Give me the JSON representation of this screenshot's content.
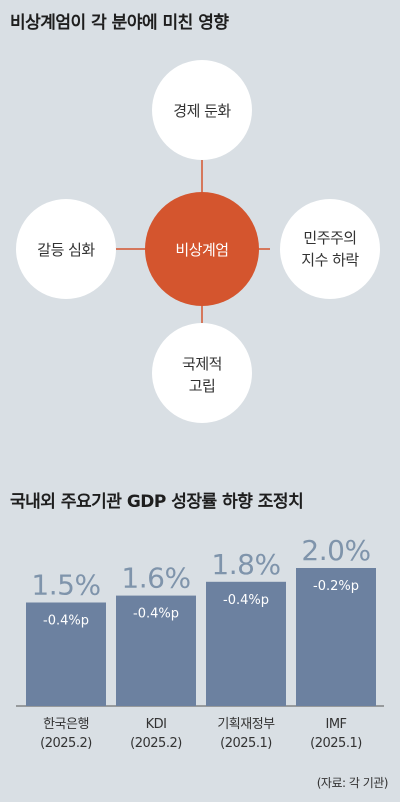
{
  "diagram": {
    "title": "비상계엄이 각 분야에 미친 영향",
    "center": "비상계엄",
    "nodes": {
      "top": [
        "경제 둔화"
      ],
      "right": [
        "민주주의",
        "지수 하락"
      ],
      "bottom": [
        "국제적",
        "고립"
      ],
      "left": [
        "갈등 심화"
      ]
    },
    "colors": {
      "center": "#d4552e",
      "node": "#ffffff",
      "connector": "#d4552e"
    }
  },
  "chart_data": {
    "type": "bar",
    "title": "국내외 주요기관 GDP 성장률 하향 조정치",
    "categories": [
      [
        "한국은행",
        "(2025.2)"
      ],
      [
        "KDI",
        "(2025.2)"
      ],
      [
        "기획재정부",
        "(2025.1)"
      ],
      [
        "IMF",
        "(2025.1)"
      ]
    ],
    "values": [
      1.5,
      1.6,
      1.8,
      2.0
    ],
    "value_labels": [
      "1.5%",
      "1.6%",
      "1.8%",
      "2.0%"
    ],
    "changes": [
      "-0.4%p",
      "-0.4%p",
      "-0.4%p",
      "-0.2%p"
    ],
    "ylim": [
      0,
      2.0
    ],
    "grid": false,
    "colors": {
      "bar": "#6c81a0",
      "value_label": "#7f94ab"
    }
  },
  "source": "(자료: 각 기관)"
}
